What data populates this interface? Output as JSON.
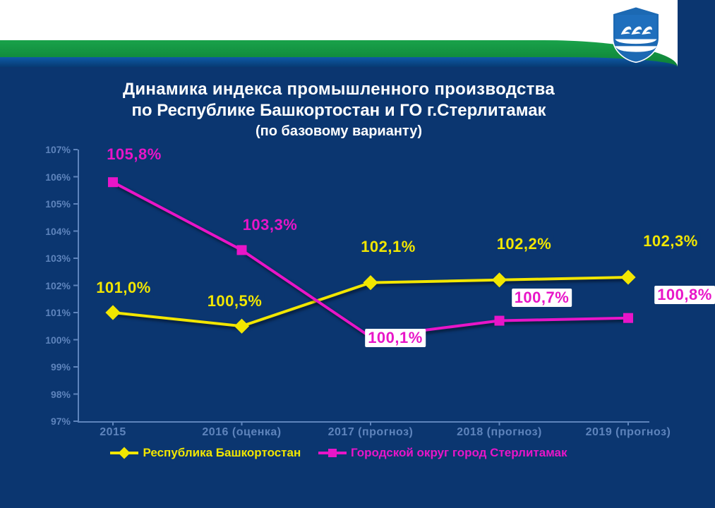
{
  "title": {
    "line1": "Динамика индекса промышленного производства",
    "line2": "по Республике Башкортостан и ГО г.Стерлитамак",
    "line3": "(по базовому варианту)"
  },
  "chart": {
    "type": "line",
    "background_color": "#0b3670",
    "axis_color": "#5e84bc",
    "tick_font_color": "#5e84bc",
    "ylim": [
      97,
      107
    ],
    "ytick_step": 1,
    "ytick_suffix": "%",
    "yticks": [
      97,
      98,
      99,
      100,
      101,
      102,
      103,
      104,
      105,
      106,
      107
    ],
    "categories": [
      "2015",
      "2016 (оценка)",
      "2017 (прогноз)",
      "2018 (прогноз)",
      "2019 (прогноз)"
    ],
    "series": [
      {
        "name": "Республика Башкортостан",
        "color": "#f2e600",
        "marker": "diamond",
        "line_width": 4,
        "values": [
          101.0,
          100.5,
          102.1,
          102.2,
          102.3
        ],
        "labels": [
          "101,0%",
          "100,5%",
          "102,1%",
          "102,2%",
          "102,3%"
        ],
        "label_offsets": [
          [
            15,
            -22
          ],
          [
            -10,
            -22
          ],
          [
            25,
            -38
          ],
          [
            35,
            -38
          ],
          [
            60,
            -38
          ]
        ]
      },
      {
        "name": "Городской округ город Стерлитамак",
        "color": "#e815c8",
        "marker": "square",
        "line_width": 4,
        "values": [
          105.8,
          103.3,
          100.1,
          100.7,
          100.8
        ],
        "labels": [
          "105,8%",
          "103,3%",
          "100,1%",
          "100,7%",
          "100,8%"
        ],
        "label_offsets": [
          [
            30,
            -26
          ],
          [
            40,
            -22
          ],
          [
            35,
            14
          ],
          [
            60,
            -20
          ],
          [
            80,
            -20
          ]
        ],
        "label_bg": [
          false,
          false,
          true,
          true,
          true
        ]
      }
    ],
    "legend": {
      "items": [
        "Республика Башкортостан",
        "Городской округ город Стерлитамак"
      ]
    }
  }
}
